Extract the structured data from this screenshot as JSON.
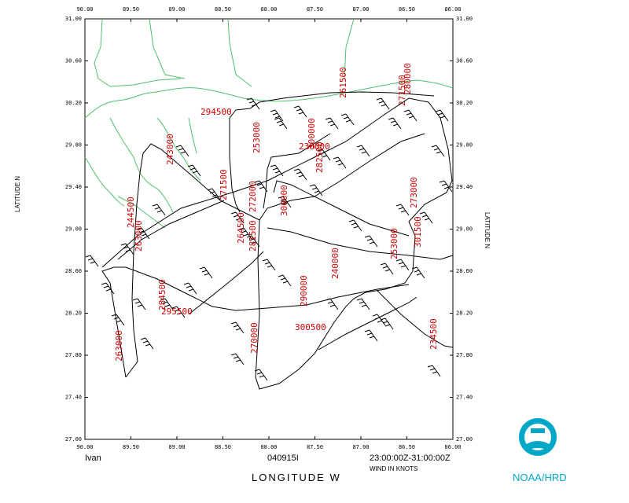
{
  "map": {
    "storm_name": "Ivan",
    "flight_id": "040915I",
    "time_range": "23:00:00Z-31:00:00Z",
    "wind_units": "WIND IN KNOTS",
    "x_axis_title": "LONGITUDE   W",
    "y_axis_left": "LATITUDE    N",
    "y_axis_right": "LATITUDE    N",
    "credit": "NOAA/HRD",
    "lon_ticks": [
      "90.00",
      "89.50",
      "89.00",
      "88.50",
      "88.00",
      "87.50",
      "87.00",
      "86.50",
      "86.00"
    ],
    "lat_ticks": [
      "27.00",
      "27.40",
      "27.80",
      "28.20",
      "28.60",
      "29.00",
      "29.40",
      "29.80",
      "30.20",
      "30.60",
      "31.00"
    ],
    "obs_labels": [
      "294500",
      "253000",
      "271500",
      "300000",
      "282500",
      "243000",
      "244500",
      "263000",
      "281500",
      "264500",
      "272000",
      "300000",
      "230000",
      "261500",
      "271500",
      "280000",
      "273000",
      "301500",
      "253000",
      "240000",
      "290000",
      "284500",
      "295500",
      "300500",
      "270000",
      "234500",
      "263000"
    ],
    "colors": {
      "coast": "#4fbf6a",
      "label": "#d00000",
      "track": "#000000",
      "noaa": "#00a8c8"
    }
  }
}
